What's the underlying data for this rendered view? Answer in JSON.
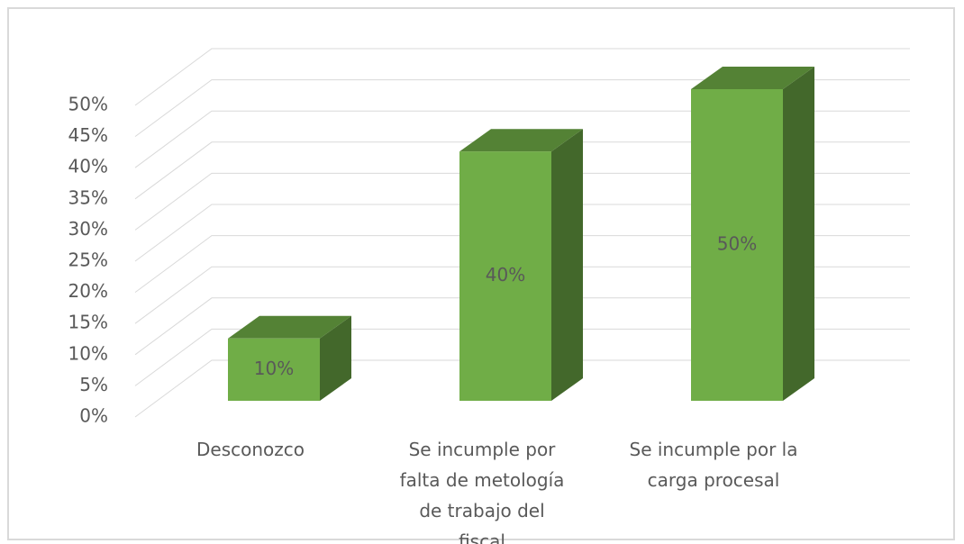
{
  "chart_data": {
    "type": "bar3d",
    "categories": [
      "Desconozco",
      "Se incumple por falta de metología de trabajo del fiscal",
      "Se incumple por la carga procesal"
    ],
    "values": [
      10,
      40,
      50
    ],
    "value_labels": [
      "10%",
      "40%",
      "50%"
    ],
    "color": "#70ad47",
    "ylim": [
      0,
      50
    ],
    "yticks": [
      {
        "value": 0,
        "label": "0%"
      },
      {
        "value": 5,
        "label": "5%"
      },
      {
        "value": 10,
        "label": "10%"
      },
      {
        "value": 15,
        "label": "15%"
      },
      {
        "value": 20,
        "label": "20%"
      },
      {
        "value": 25,
        "label": "25%"
      },
      {
        "value": 30,
        "label": "30%"
      },
      {
        "value": 35,
        "label": "35%"
      },
      {
        "value": 40,
        "label": "40%"
      },
      {
        "value": 45,
        "label": "45%"
      },
      {
        "value": 50,
        "label": "50%"
      }
    ],
    "grid": true
  }
}
